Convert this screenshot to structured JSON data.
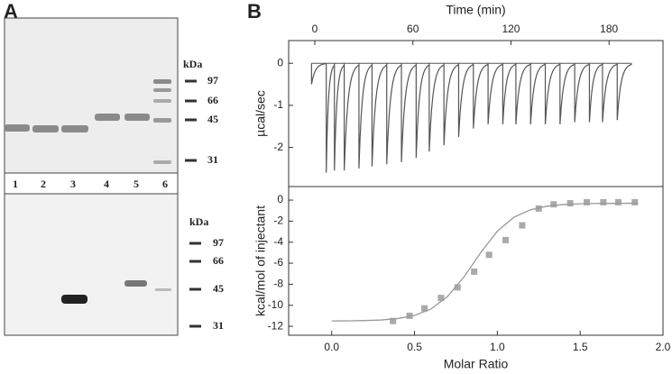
{
  "panel_labels": [
    "A",
    "B"
  ],
  "gel": {
    "lanes": [
      "1",
      "2",
      "3",
      "4",
      "5",
      "6"
    ],
    "top_markers": {
      "unit": "kDa",
      "labels": [
        "97",
        "66",
        "45",
        "31"
      ]
    },
    "bottom_markers": {
      "unit": "kDa",
      "labels": [
        "97",
        "66",
        "45",
        "31"
      ]
    }
  },
  "chart_data": [
    {
      "type": "thermogram",
      "xlabel": "Time (min)",
      "ylabel": "µcal/sec",
      "xaxis_position": "top",
      "xlim": [
        -16,
        213
      ],
      "ylim": [
        -2.93,
        0.54
      ],
      "xticks": [
        0,
        60,
        120,
        180
      ],
      "yticks": [
        0,
        -1,
        -2
      ],
      "color": "#555555",
      "x": [
        -2,
        7,
        12,
        18,
        27,
        35,
        44,
        53,
        62,
        70,
        79,
        88,
        97,
        106,
        115,
        123,
        132,
        141,
        150,
        159,
        168,
        176,
        185
      ],
      "values": [
        -0.5,
        -2.6,
        -2.55,
        -2.55,
        -2.5,
        -2.45,
        -2.4,
        -2.35,
        -2.25,
        -2.1,
        -1.95,
        -1.75,
        -1.55,
        -1.45,
        -1.45,
        -1.45,
        -1.45,
        -1.45,
        -1.45,
        -1.4,
        -1.4,
        -1.4,
        -1.35
      ]
    },
    {
      "type": "scatter",
      "xlabel": "Molar Ratio",
      "ylabel": "kcal/mol of injectant",
      "xaxis_position": "bottom",
      "xlim": [
        -0.26,
        2.0
      ],
      "ylim": [
        -12.85,
        1.29
      ],
      "xticks": [
        {
          "value": 0,
          "label": "0.0"
        },
        0.5,
        {
          "value": 1,
          "label": "1.0"
        },
        1.5,
        {
          "value": 2,
          "label": "2.0"
        }
      ],
      "yticks": [
        0,
        -2,
        -4,
        -6,
        -8,
        -10,
        -12
      ],
      "series": [
        {
          "marker": "square",
          "color": "#aaaaaa",
          "x": [
            0.37,
            0.47,
            0.56,
            0.66,
            0.76,
            0.86,
            0.95,
            1.05,
            1.15,
            1.25,
            1.34,
            1.44,
            1.54,
            1.64,
            1.73,
            1.83
          ],
          "values": [
            -11.5,
            -11.0,
            -10.3,
            -9.3,
            -8.3,
            -6.8,
            -5.2,
            -3.8,
            -2.4,
            -0.8,
            -0.4,
            -0.3,
            -0.2,
            -0.2,
            -0.2,
            -0.2
          ]
        },
        {
          "marker": "none",
          "color": "#999999",
          "x": [
            0,
            0.1,
            0.2,
            0.3,
            0.4,
            0.5,
            0.6,
            0.7,
            0.8,
            0.9,
            1.0,
            1.1,
            1.2,
            1.3,
            1.4,
            1.5,
            1.6,
            1.7,
            1.8,
            1.85
          ],
          "values": [
            -11.49,
            -11.48,
            -11.45,
            -11.4,
            -11.26,
            -10.97,
            -10.35,
            -9.16,
            -7.27,
            -4.99,
            -2.95,
            -1.63,
            -0.92,
            -0.58,
            -0.42,
            -0.35,
            -0.32,
            -0.31,
            -0.3,
            -0.3
          ]
        }
      ]
    }
  ]
}
